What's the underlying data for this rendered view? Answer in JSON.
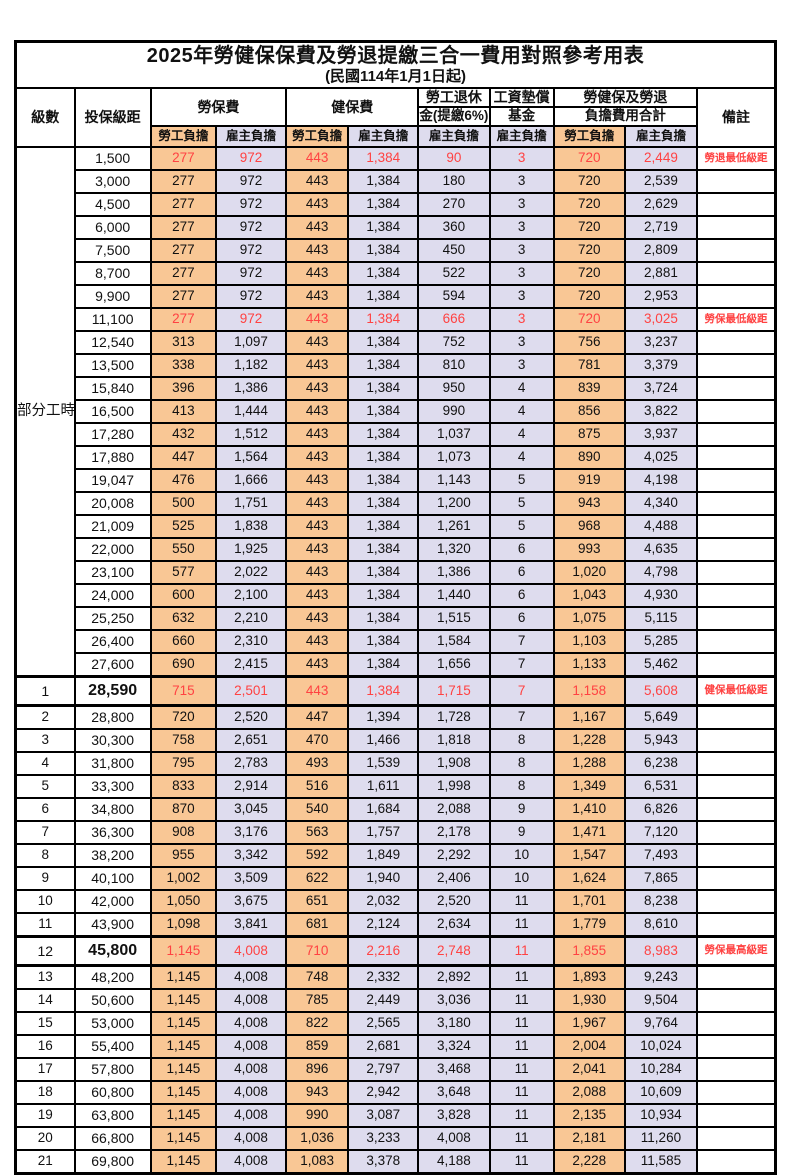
{
  "page": {
    "title": "2025年勞健保保費及勞退提繳三合一費用對照參考用表",
    "subtitle": "(民國114年1月1日起)"
  },
  "header": {
    "level": "級數",
    "bracket": "投保級距",
    "labor_insurance": "勞保費",
    "health_insurance": "健保費",
    "pension_line1": "勞工退休",
    "pension_line2": "金(提繳6%)",
    "wage_fund_line1": "工資墊償",
    "wage_fund_line2": "基金",
    "total_line1": "勞健保及勞退",
    "total_line2": "負擔費用合計",
    "remark": "備註",
    "employee_label": "勞工負擔",
    "employer_label": "雇主負擔"
  },
  "part_time": {
    "label": "部分工時",
    "span": 23
  },
  "value_columns": [
    "labor_employee",
    "labor_employer",
    "health_employee",
    "health_employer",
    "pension_employer",
    "wage_fund_employer",
    "total_employee",
    "total_employer"
  ],
  "colors": {
    "employee_bg": "#F9C795",
    "employer_bg": "#DEDCEE",
    "highlight_red": "#FF4242",
    "border": "#000000"
  },
  "rows": [
    {
      "level": "",
      "bracket": "1,500",
      "v": [
        "277",
        "972",
        "443",
        "1,384",
        "90",
        "3",
        "720",
        "2,449"
      ],
      "remark": "勞退最低級距",
      "red": true,
      "hl": false
    },
    {
      "level": "",
      "bracket": "3,000",
      "v": [
        "277",
        "972",
        "443",
        "1,384",
        "180",
        "3",
        "720",
        "2,539"
      ],
      "remark": "",
      "red": false,
      "hl": false
    },
    {
      "level": "",
      "bracket": "4,500",
      "v": [
        "277",
        "972",
        "443",
        "1,384",
        "270",
        "3",
        "720",
        "2,629"
      ],
      "remark": "",
      "red": false,
      "hl": false
    },
    {
      "level": "",
      "bracket": "6,000",
      "v": [
        "277",
        "972",
        "443",
        "1,384",
        "360",
        "3",
        "720",
        "2,719"
      ],
      "remark": "",
      "red": false,
      "hl": false
    },
    {
      "level": "",
      "bracket": "7,500",
      "v": [
        "277",
        "972",
        "443",
        "1,384",
        "450",
        "3",
        "720",
        "2,809"
      ],
      "remark": "",
      "red": false,
      "hl": false
    },
    {
      "level": "",
      "bracket": "8,700",
      "v": [
        "277",
        "972",
        "443",
        "1,384",
        "522",
        "3",
        "720",
        "2,881"
      ],
      "remark": "",
      "red": false,
      "hl": false
    },
    {
      "level": "",
      "bracket": "9,900",
      "v": [
        "277",
        "972",
        "443",
        "1,384",
        "594",
        "3",
        "720",
        "2,953"
      ],
      "remark": "",
      "red": false,
      "hl": false
    },
    {
      "level": "",
      "bracket": "11,100",
      "v": [
        "277",
        "972",
        "443",
        "1,384",
        "666",
        "3",
        "720",
        "3,025"
      ],
      "remark": "勞保最低級距",
      "red": true,
      "hl": false
    },
    {
      "level": "",
      "bracket": "12,540",
      "v": [
        "313",
        "1,097",
        "443",
        "1,384",
        "752",
        "3",
        "756",
        "3,237"
      ],
      "remark": "",
      "red": false,
      "hl": false
    },
    {
      "level": "",
      "bracket": "13,500",
      "v": [
        "338",
        "1,182",
        "443",
        "1,384",
        "810",
        "3",
        "781",
        "3,379"
      ],
      "remark": "",
      "red": false,
      "hl": false
    },
    {
      "level": "",
      "bracket": "15,840",
      "v": [
        "396",
        "1,386",
        "443",
        "1,384",
        "950",
        "4",
        "839",
        "3,724"
      ],
      "remark": "",
      "red": false,
      "hl": false
    },
    {
      "level": "",
      "bracket": "16,500",
      "v": [
        "413",
        "1,444",
        "443",
        "1,384",
        "990",
        "4",
        "856",
        "3,822"
      ],
      "remark": "",
      "red": false,
      "hl": false
    },
    {
      "level": "",
      "bracket": "17,280",
      "v": [
        "432",
        "1,512",
        "443",
        "1,384",
        "1,037",
        "4",
        "875",
        "3,937"
      ],
      "remark": "",
      "red": false,
      "hl": false
    },
    {
      "level": "",
      "bracket": "17,880",
      "v": [
        "447",
        "1,564",
        "443",
        "1,384",
        "1,073",
        "4",
        "890",
        "4,025"
      ],
      "remark": "",
      "red": false,
      "hl": false
    },
    {
      "level": "",
      "bracket": "19,047",
      "v": [
        "476",
        "1,666",
        "443",
        "1,384",
        "1,143",
        "5",
        "919",
        "4,198"
      ],
      "remark": "",
      "red": false,
      "hl": false
    },
    {
      "level": "",
      "bracket": "20,008",
      "v": [
        "500",
        "1,751",
        "443",
        "1,384",
        "1,200",
        "5",
        "943",
        "4,340"
      ],
      "remark": "",
      "red": false,
      "hl": false
    },
    {
      "level": "",
      "bracket": "21,009",
      "v": [
        "525",
        "1,838",
        "443",
        "1,384",
        "1,261",
        "5",
        "968",
        "4,488"
      ],
      "remark": "",
      "red": false,
      "hl": false
    },
    {
      "level": "",
      "bracket": "22,000",
      "v": [
        "550",
        "1,925",
        "443",
        "1,384",
        "1,320",
        "6",
        "993",
        "4,635"
      ],
      "remark": "",
      "red": false,
      "hl": false
    },
    {
      "level": "",
      "bracket": "23,100",
      "v": [
        "577",
        "2,022",
        "443",
        "1,384",
        "1,386",
        "6",
        "1,020",
        "4,798"
      ],
      "remark": "",
      "red": false,
      "hl": false
    },
    {
      "level": "",
      "bracket": "24,000",
      "v": [
        "600",
        "2,100",
        "443",
        "1,384",
        "1,440",
        "6",
        "1,043",
        "4,930"
      ],
      "remark": "",
      "red": false,
      "hl": false
    },
    {
      "level": "",
      "bracket": "25,250",
      "v": [
        "632",
        "2,210",
        "443",
        "1,384",
        "1,515",
        "6",
        "1,075",
        "5,115"
      ],
      "remark": "",
      "red": false,
      "hl": false
    },
    {
      "level": "",
      "bracket": "26,400",
      "v": [
        "660",
        "2,310",
        "443",
        "1,384",
        "1,584",
        "7",
        "1,103",
        "5,285"
      ],
      "remark": "",
      "red": false,
      "hl": false
    },
    {
      "level": "",
      "bracket": "27,600",
      "v": [
        "690",
        "2,415",
        "443",
        "1,384",
        "1,656",
        "7",
        "1,133",
        "5,462"
      ],
      "remark": "",
      "red": false,
      "hl": false
    },
    {
      "level": "1",
      "bracket": "28,590",
      "v": [
        "715",
        "2,501",
        "443",
        "1,384",
        "1,715",
        "7",
        "1,158",
        "5,608"
      ],
      "remark": "健保最低級距",
      "red": true,
      "hl": true
    },
    {
      "level": "2",
      "bracket": "28,800",
      "v": [
        "720",
        "2,520",
        "447",
        "1,394",
        "1,728",
        "7",
        "1,167",
        "5,649"
      ],
      "remark": "",
      "red": false,
      "hl": false
    },
    {
      "level": "3",
      "bracket": "30,300",
      "v": [
        "758",
        "2,651",
        "470",
        "1,466",
        "1,818",
        "8",
        "1,228",
        "5,943"
      ],
      "remark": "",
      "red": false,
      "hl": false
    },
    {
      "level": "4",
      "bracket": "31,800",
      "v": [
        "795",
        "2,783",
        "493",
        "1,539",
        "1,908",
        "8",
        "1,288",
        "6,238"
      ],
      "remark": "",
      "red": false,
      "hl": false
    },
    {
      "level": "5",
      "bracket": "33,300",
      "v": [
        "833",
        "2,914",
        "516",
        "1,611",
        "1,998",
        "8",
        "1,349",
        "6,531"
      ],
      "remark": "",
      "red": false,
      "hl": false
    },
    {
      "level": "6",
      "bracket": "34,800",
      "v": [
        "870",
        "3,045",
        "540",
        "1,684",
        "2,088",
        "9",
        "1,410",
        "6,826"
      ],
      "remark": "",
      "red": false,
      "hl": false
    },
    {
      "level": "7",
      "bracket": "36,300",
      "v": [
        "908",
        "3,176",
        "563",
        "1,757",
        "2,178",
        "9",
        "1,471",
        "7,120"
      ],
      "remark": "",
      "red": false,
      "hl": false
    },
    {
      "level": "8",
      "bracket": "38,200",
      "v": [
        "955",
        "3,342",
        "592",
        "1,849",
        "2,292",
        "10",
        "1,547",
        "7,493"
      ],
      "remark": "",
      "red": false,
      "hl": false
    },
    {
      "level": "9",
      "bracket": "40,100",
      "v": [
        "1,002",
        "3,509",
        "622",
        "1,940",
        "2,406",
        "10",
        "1,624",
        "7,865"
      ],
      "remark": "",
      "red": false,
      "hl": false
    },
    {
      "level": "10",
      "bracket": "42,000",
      "v": [
        "1,050",
        "3,675",
        "651",
        "2,032",
        "2,520",
        "11",
        "1,701",
        "8,238"
      ],
      "remark": "",
      "red": false,
      "hl": false
    },
    {
      "level": "11",
      "bracket": "43,900",
      "v": [
        "1,098",
        "3,841",
        "681",
        "2,124",
        "2,634",
        "11",
        "1,779",
        "8,610"
      ],
      "remark": "",
      "red": false,
      "hl": false
    },
    {
      "level": "12",
      "bracket": "45,800",
      "v": [
        "1,145",
        "4,008",
        "710",
        "2,216",
        "2,748",
        "11",
        "1,855",
        "8,983"
      ],
      "remark": "勞保最高級距",
      "red": true,
      "hl": true
    },
    {
      "level": "13",
      "bracket": "48,200",
      "v": [
        "1,145",
        "4,008",
        "748",
        "2,332",
        "2,892",
        "11",
        "1,893",
        "9,243"
      ],
      "remark": "",
      "red": false,
      "hl": false
    },
    {
      "level": "14",
      "bracket": "50,600",
      "v": [
        "1,145",
        "4,008",
        "785",
        "2,449",
        "3,036",
        "11",
        "1,930",
        "9,504"
      ],
      "remark": "",
      "red": false,
      "hl": false
    },
    {
      "level": "15",
      "bracket": "53,000",
      "v": [
        "1,145",
        "4,008",
        "822",
        "2,565",
        "3,180",
        "11",
        "1,967",
        "9,764"
      ],
      "remark": "",
      "red": false,
      "hl": false
    },
    {
      "level": "16",
      "bracket": "55,400",
      "v": [
        "1,145",
        "4,008",
        "859",
        "2,681",
        "3,324",
        "11",
        "2,004",
        "10,024"
      ],
      "remark": "",
      "red": false,
      "hl": false
    },
    {
      "level": "17",
      "bracket": "57,800",
      "v": [
        "1,145",
        "4,008",
        "896",
        "2,797",
        "3,468",
        "11",
        "2,041",
        "10,284"
      ],
      "remark": "",
      "red": false,
      "hl": false
    },
    {
      "level": "18",
      "bracket": "60,800",
      "v": [
        "1,145",
        "4,008",
        "943",
        "2,942",
        "3,648",
        "11",
        "2,088",
        "10,609"
      ],
      "remark": "",
      "red": false,
      "hl": false
    },
    {
      "level": "19",
      "bracket": "63,800",
      "v": [
        "1,145",
        "4,008",
        "990",
        "3,087",
        "3,828",
        "11",
        "2,135",
        "10,934"
      ],
      "remark": "",
      "red": false,
      "hl": false
    },
    {
      "level": "20",
      "bracket": "66,800",
      "v": [
        "1,145",
        "4,008",
        "1,036",
        "3,233",
        "4,008",
        "11",
        "2,181",
        "11,260"
      ],
      "remark": "",
      "red": false,
      "hl": false
    },
    {
      "level": "21",
      "bracket": "69,800",
      "v": [
        "1,145",
        "4,008",
        "1,083",
        "3,378",
        "4,188",
        "11",
        "2,228",
        "11,585"
      ],
      "remark": "",
      "red": false,
      "hl": false
    }
  ]
}
